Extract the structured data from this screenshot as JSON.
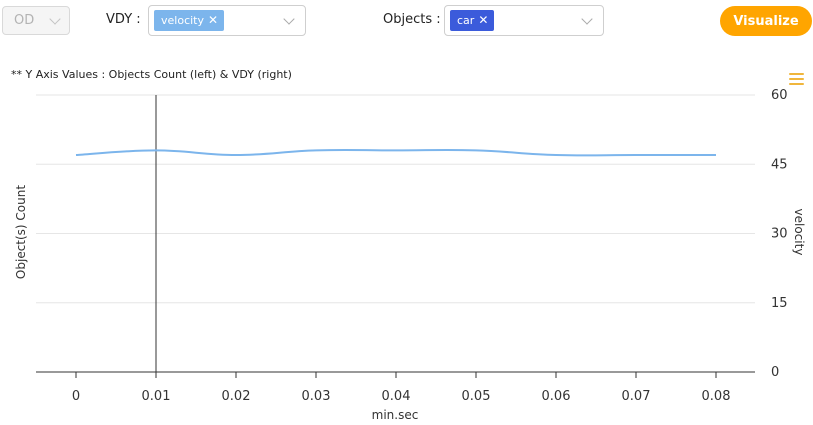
{
  "controls": {
    "od_select": {
      "value": "OD"
    },
    "vdy_label": "VDY :",
    "vdy_tag": "velocity",
    "objects_label": "Objects :",
    "objects_tag": "car",
    "visualize_label": "Visualize",
    "tag_colors": {
      "vdy": "#7cb5ec",
      "objects": "#3b5bdb"
    },
    "accent": "#ffa500"
  },
  "note": "** Y Axis Values : Objects Count (left) & VDY (right)",
  "chart_data": {
    "type": "line",
    "title": "",
    "xlabel": "min.sec",
    "ylabel_left": "Object(s) Count",
    "ylabel_right": "velocity",
    "x": [
      0,
      0.01,
      0.02,
      0.03,
      0.04,
      0.05,
      0.06,
      0.07,
      0.08
    ],
    "x_tick_labels": [
      "0",
      "0.01",
      "0.02",
      "0.03",
      "0.04",
      "0.05",
      "0.06",
      "0.07",
      "0.08"
    ],
    "right_y_ticks": [
      "0",
      "15",
      "30",
      "45",
      "60"
    ],
    "right_ylim": [
      0,
      60
    ],
    "series": [
      {
        "name": "velocity",
        "axis": "right",
        "color": "#7cb5ec",
        "values": [
          47,
          48,
          47,
          48,
          48,
          48,
          47,
          47,
          47
        ]
      }
    ],
    "crosshair_x": 0.01,
    "grid": true
  }
}
